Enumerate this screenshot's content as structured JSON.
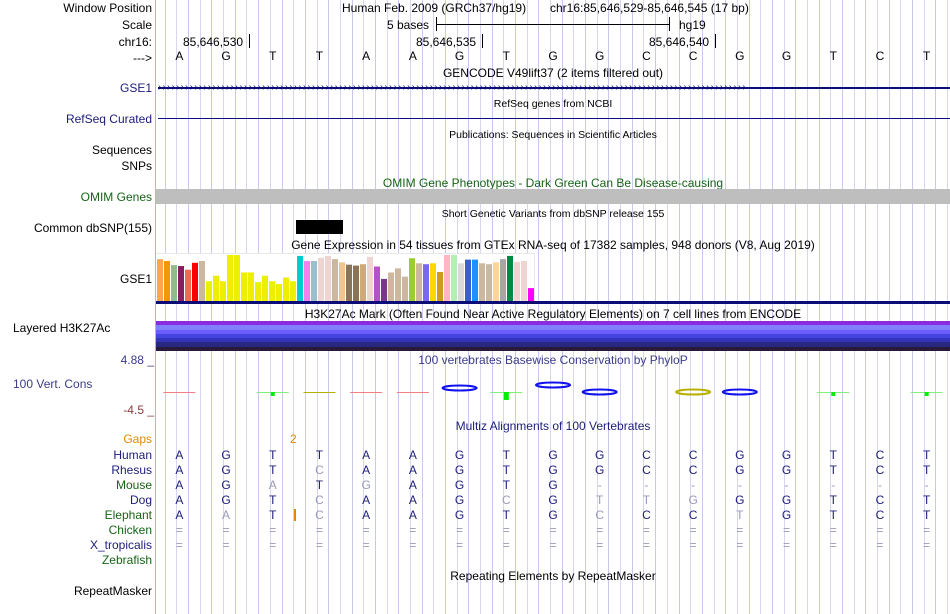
{
  "header": {
    "window_position_label": "Window Position",
    "scale_label": "Scale",
    "chrom_label": "chr16:",
    "strand_label": "--->",
    "assembly": "Human Feb. 2009 (GRCh37/hg19)",
    "position": "chr16:85,646,529-85,646,545 (17 bp)",
    "scale_text": "5 bases",
    "scale_db": "hg19",
    "coord_ticks": [
      "85,646,530",
      "85,646,535",
      "85,646,540"
    ]
  },
  "sequence": [
    "A",
    "G",
    "T",
    "T",
    "A",
    "A",
    "G",
    "T",
    "G",
    "G",
    "C",
    "C",
    "G",
    "G",
    "T",
    "C",
    "T"
  ],
  "tracks": {
    "gencode": {
      "title": "GENCODE V49lift37 (2 items filtered out)",
      "label": "GSE1"
    },
    "refseq": {
      "title": "RefSeq genes from NCBI",
      "label": "RefSeq Curated"
    },
    "publications": {
      "title": "Publications: Sequences in Scientific Articles",
      "label_line1": "Sequences",
      "label_line2": "SNPs"
    },
    "omim": {
      "title": "OMIM Gene Phenotypes - Dark Green Can Be Disease-causing",
      "label": "OMIM Genes",
      "bar_color": "#bebebe"
    },
    "dbsnp": {
      "title": "Short Genetic Variants from dbSNP release 155",
      "label": "Common dbSNP(155)"
    },
    "gtex": {
      "title": "Gene Expression in 54 tissues from GTEx RNA-seq of 17382 samples, 948 donors (V8, Aug 2019)",
      "label": "GSE1",
      "bars": [
        {
          "v": 0.91,
          "c": "#FFA54F"
        },
        {
          "v": 0.87,
          "c": "#EE9A00"
        },
        {
          "v": 0.78,
          "c": "#8FBC8F"
        },
        {
          "v": 0.76,
          "c": "#8B1C62"
        },
        {
          "v": 0.68,
          "c": "#EE6A50"
        },
        {
          "v": 0.83,
          "c": "#FF0000"
        },
        {
          "v": 0.87,
          "c": "#CDB79E"
        },
        {
          "v": 0.43,
          "c": "#EEEE00"
        },
        {
          "v": 0.55,
          "c": "#EEEE00"
        },
        {
          "v": 0.43,
          "c": "#EEEE00"
        },
        {
          "v": 1.0,
          "c": "#EEEE00"
        },
        {
          "v": 1.0,
          "c": "#EEEE00"
        },
        {
          "v": 0.62,
          "c": "#EEEE00"
        },
        {
          "v": 0.62,
          "c": "#EEEE00"
        },
        {
          "v": 0.41,
          "c": "#EEEE00"
        },
        {
          "v": 0.55,
          "c": "#EEEE00"
        },
        {
          "v": 0.43,
          "c": "#EEEE00"
        },
        {
          "v": 0.37,
          "c": "#EEEE00"
        },
        {
          "v": 0.51,
          "c": "#EEEE00"
        },
        {
          "v": 0.43,
          "c": "#EEEE00"
        },
        {
          "v": 0.98,
          "c": "#00CDCD"
        },
        {
          "v": 0.87,
          "c": "#EE82EE"
        },
        {
          "v": 0.87,
          "c": "#9AC0CD"
        },
        {
          "v": 0.94,
          "c": "#EED5D2"
        },
        {
          "v": 0.98,
          "c": "#EED5D2"
        },
        {
          "v": 0.91,
          "c": "#CDB79E"
        },
        {
          "v": 0.84,
          "c": "#EEC591"
        },
        {
          "v": 0.79,
          "c": "#8B7355"
        },
        {
          "v": 0.77,
          "c": "#8B7355"
        },
        {
          "v": 0.8,
          "c": "#CDAA7D"
        },
        {
          "v": 0.96,
          "c": "#EED5D2"
        },
        {
          "v": 0.75,
          "c": "#B452CD"
        },
        {
          "v": 0.48,
          "c": "#7A378B"
        },
        {
          "v": 0.62,
          "c": "#CDB79E"
        },
        {
          "v": 0.71,
          "c": "#CDB79E"
        },
        {
          "v": 0.53,
          "c": "#CDB79E"
        },
        {
          "v": 0.93,
          "c": "#9ACD32"
        },
        {
          "v": 0.82,
          "c": "#CDB79E"
        },
        {
          "v": 0.8,
          "c": "#7B68EE"
        },
        {
          "v": 0.82,
          "c": "#FFD700"
        },
        {
          "v": 0.63,
          "c": "#CD9B1D"
        },
        {
          "v": 1.0,
          "c": "#FFB6C1"
        },
        {
          "v": 1.0,
          "c": "#B4EEB4"
        },
        {
          "v": 0.82,
          "c": "#D9D9D9"
        },
        {
          "v": 0.9,
          "c": "#3A5FCD"
        },
        {
          "v": 0.9,
          "c": "#1E90FF"
        },
        {
          "v": 0.82,
          "c": "#CDB79E"
        },
        {
          "v": 0.8,
          "c": "#CDB79E"
        },
        {
          "v": 0.84,
          "c": "#FFD39B"
        },
        {
          "v": 0.91,
          "c": "#A6A6A6"
        },
        {
          "v": 0.98,
          "c": "#008B45"
        },
        {
          "v": 0.85,
          "c": "#EED5D2"
        },
        {
          "v": 0.87,
          "c": "#EED5D2"
        },
        {
          "v": 0.28,
          "c": "#FF00FF"
        }
      ]
    },
    "h3k27ac": {
      "title": "H3K27Ac Mark (Often Found Near Active Regulatory Elements) on 7 cell lines from ENCODE",
      "label": "Layered H3K27Ac",
      "layers": [
        "#8a2be2",
        "#8080ff",
        "#6a5cff",
        "#4444e0",
        "#3333bb",
        "#282880",
        "#2a1a3a"
      ]
    },
    "phylop": {
      "title": "100 vertebrates Basewise Conservation by PhyloP",
      "label": "100 Vert. Cons",
      "max_label": "4.88 _",
      "min_label": "-4.5 _"
    },
    "multiz": {
      "title": "Multiz Alignments of 100 Vertebrates",
      "gaps_label": "Gaps",
      "gap_count": "2",
      "species": [
        {
          "name": "Human",
          "color": "navy",
          "bases": [
            "A",
            "G",
            "T",
            "T",
            "A",
            "A",
            "G",
            "T",
            "G",
            "G",
            "C",
            "C",
            "G",
            "G",
            "T",
            "C",
            "T"
          ],
          "dim": []
        },
        {
          "name": "Rhesus",
          "color": "navy",
          "bases": [
            "A",
            "G",
            "T",
            "C",
            "A",
            "A",
            "G",
            "T",
            "G",
            "G",
            "C",
            "C",
            "G",
            "G",
            "T",
            "C",
            "T"
          ],
          "dim": [
            3
          ]
        },
        {
          "name": "Mouse",
          "color": "green",
          "bases": [
            "A",
            "G",
            "A",
            "T",
            "G",
            "A",
            "G",
            "T",
            "G",
            "-",
            "-",
            "-",
            "-",
            "-",
            "-",
            "-",
            "-"
          ],
          "dim": [
            2,
            4,
            9,
            10,
            11,
            12,
            13,
            14,
            15,
            16
          ]
        },
        {
          "name": "Dog",
          "color": "navy",
          "bases": [
            "A",
            "G",
            "T",
            "C",
            "A",
            "A",
            "G",
            "C",
            "G",
            "T",
            "T",
            "G",
            "G",
            "G",
            "T",
            "C",
            "T"
          ],
          "dim": [
            3,
            7,
            9,
            10,
            11
          ]
        },
        {
          "name": "Elephant",
          "color": "green",
          "bases": [
            "A",
            "A",
            "T",
            "C",
            "A",
            "A",
            "G",
            "T",
            "G",
            "C",
            "C",
            "C",
            "T",
            "G",
            "T",
            "C",
            "T"
          ],
          "dim": [
            1,
            3,
            9,
            12
          ]
        },
        {
          "name": "Chicken",
          "color": "green",
          "bases": [
            "=",
            "=",
            "=",
            "=",
            "=",
            "=",
            "=",
            "=",
            "=",
            "=",
            "=",
            "=",
            "=",
            "=",
            "=",
            "=",
            "="
          ],
          "dim": "all"
        },
        {
          "name": "X_tropicalis",
          "color": "navy",
          "bases": [
            "=",
            "=",
            "=",
            "=",
            "=",
            "=",
            "=",
            "=",
            "=",
            "=",
            "=",
            "=",
            "=",
            "=",
            "=",
            "=",
            "="
          ],
          "dim": "all"
        },
        {
          "name": "Zebrafish",
          "color": "green",
          "bases": [],
          "dim": []
        }
      ]
    },
    "repeatmasker": {
      "title": "Repeating Elements by RepeatMasker",
      "label": "RepeatMasker"
    }
  },
  "colors": {
    "navy": "#1c1c7a",
    "green": "#166416",
    "orange": "#e08a0c",
    "dim_base": "#9a9ab8",
    "gene_line": "#0c0c78"
  }
}
